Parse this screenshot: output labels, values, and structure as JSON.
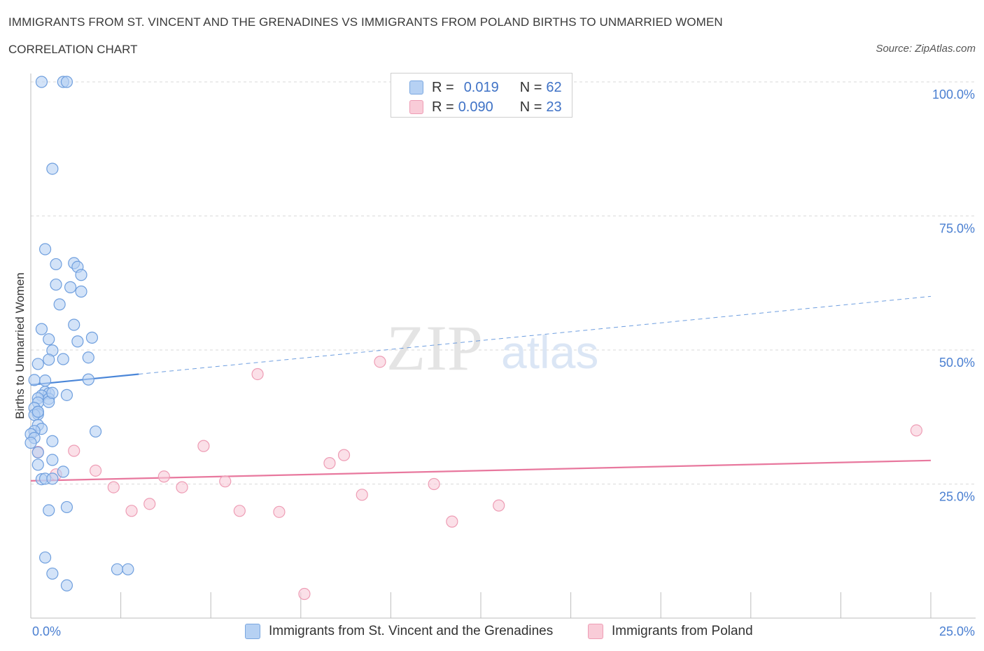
{
  "title": "IMMIGRANTS FROM ST. VINCENT AND THE GRENADINES VS IMMIGRANTS FROM POLAND BIRTHS TO UNMARRIED WOMEN",
  "subtitle": "CORRELATION CHART",
  "source": "Source: ZipAtlas.com",
  "legend": {
    "r_label": "R =",
    "n_label": "N =",
    "blue": {
      "r": "0.019",
      "n": "62"
    },
    "pink": {
      "r": "0.090",
      "n": "23"
    }
  },
  "bottom_legend": {
    "blue": "Immigrants from St. Vincent and the Grenadines",
    "pink": "Immigrants from Poland"
  },
  "colors": {
    "blue": "#4a86d8",
    "pink": "#e8789e",
    "blue_fill": "#b6d1f3",
    "pink_fill": "#f9ccd8"
  },
  "watermark": {
    "zip": "ZIP",
    "atlas": "atlas"
  },
  "chart_data": {
    "type": "scatter",
    "xlabel": "",
    "ylabel": "Births to Unmarried Women",
    "xlim": [
      0,
      25
    ],
    "ylim": [
      0,
      100
    ],
    "x_tick_labels": [
      "0.0%",
      "25.0%"
    ],
    "y_tick_labels": [
      "25.0%",
      "50.0%",
      "75.0%",
      "100.0%"
    ],
    "y_ticks": [
      25,
      50,
      75,
      100
    ],
    "series": [
      {
        "name": "Immigrants from St. Vincent and the Grenadines",
        "color": "#4a86d8",
        "trend": {
          "x0": 0,
          "y0": 43.5,
          "x1": 3.0,
          "y1": 45.5,
          "dash_to_x": 25,
          "dash_to_y": 60.0
        },
        "points": [
          [
            0.3,
            100
          ],
          [
            0.9,
            100
          ],
          [
            1.0,
            100
          ],
          [
            0.6,
            83.8
          ],
          [
            0.4,
            68.8
          ],
          [
            0.7,
            66.0
          ],
          [
            1.2,
            66.2
          ],
          [
            1.3,
            65.5
          ],
          [
            1.4,
            64.0
          ],
          [
            0.7,
            62.2
          ],
          [
            1.1,
            61.7
          ],
          [
            1.4,
            60.9
          ],
          [
            0.8,
            58.5
          ],
          [
            0.3,
            53.9
          ],
          [
            1.2,
            54.7
          ],
          [
            0.5,
            52.0
          ],
          [
            1.3,
            51.6
          ],
          [
            1.7,
            52.3
          ],
          [
            0.6,
            49.9
          ],
          [
            0.2,
            47.4
          ],
          [
            0.5,
            48.2
          ],
          [
            0.9,
            48.3
          ],
          [
            1.6,
            48.6
          ],
          [
            0.1,
            44.4
          ],
          [
            0.4,
            44.3
          ],
          [
            1.6,
            44.5
          ],
          [
            0.4,
            42.2
          ],
          [
            0.5,
            41.9
          ],
          [
            0.3,
            41.5
          ],
          [
            0.2,
            41.0
          ],
          [
            0.5,
            40.9
          ],
          [
            1.0,
            41.6
          ],
          [
            0.2,
            40.2
          ],
          [
            0.5,
            40.3
          ],
          [
            0.1,
            39.2
          ],
          [
            0.2,
            38.4
          ],
          [
            0.2,
            38.0
          ],
          [
            0.1,
            37.9
          ],
          [
            0.2,
            36.0
          ],
          [
            0.3,
            35.3
          ],
          [
            0.1,
            34.9
          ],
          [
            0.0,
            34.3
          ],
          [
            0.1,
            33.6
          ],
          [
            1.8,
            34.8
          ],
          [
            0.6,
            33.0
          ],
          [
            0.0,
            32.7
          ],
          [
            0.2,
            30.9
          ],
          [
            0.6,
            29.5
          ],
          [
            0.2,
            28.6
          ],
          [
            0.9,
            27.3
          ],
          [
            0.3,
            25.9
          ],
          [
            0.4,
            26.0
          ],
          [
            0.6,
            26.0
          ],
          [
            1.0,
            20.7
          ],
          [
            0.5,
            20.1
          ],
          [
            0.4,
            11.3
          ],
          [
            0.6,
            8.3
          ],
          [
            1.0,
            6.1
          ],
          [
            2.4,
            9.1
          ],
          [
            2.7,
            9.1
          ],
          [
            0.2,
            38.5
          ],
          [
            0.6,
            42.0
          ]
        ]
      },
      {
        "name": "Immigrants from Poland",
        "color": "#e8789e",
        "trend": {
          "x0": 0,
          "y0": 25.6,
          "x1": 25,
          "y1": 29.4
        },
        "points": [
          [
            0.2,
            31.0
          ],
          [
            1.2,
            31.2
          ],
          [
            0.7,
            26.8
          ],
          [
            1.8,
            27.5
          ],
          [
            2.3,
            24.4
          ],
          [
            2.8,
            20.0
          ],
          [
            3.3,
            21.3
          ],
          [
            3.7,
            26.4
          ],
          [
            4.2,
            24.4
          ],
          [
            4.8,
            32.1
          ],
          [
            5.4,
            25.5
          ],
          [
            5.8,
            20.0
          ],
          [
            6.3,
            45.5
          ],
          [
            6.9,
            19.8
          ],
          [
            7.6,
            4.5
          ],
          [
            8.3,
            28.9
          ],
          [
            8.7,
            30.4
          ],
          [
            9.2,
            23.0
          ],
          [
            9.7,
            47.8
          ],
          [
            11.2,
            25.0
          ],
          [
            11.7,
            18.0
          ],
          [
            13.0,
            21.0
          ],
          [
            24.6,
            35.0
          ]
        ]
      }
    ]
  }
}
